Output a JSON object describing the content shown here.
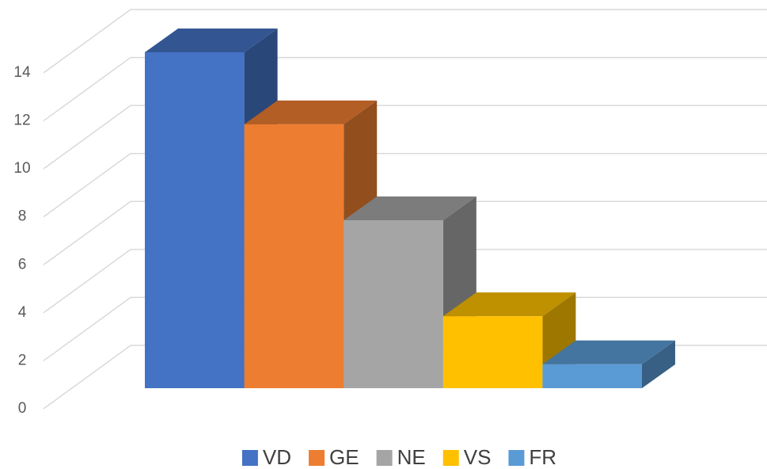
{
  "chart_data": {
    "type": "bar3d",
    "series": [
      {
        "name": "VD",
        "color": "#4472c4",
        "values": [
          14
        ]
      },
      {
        "name": "GE",
        "color": "#ed7d31",
        "values": [
          11
        ]
      },
      {
        "name": "NE",
        "color": "#a5a5a5",
        "values": [
          7
        ]
      },
      {
        "name": "VS",
        "color": "#ffc000",
        "values": [
          3
        ]
      },
      {
        "name": "FR",
        "color": "#5b9bd5",
        "values": [
          1
        ]
      }
    ],
    "ylim": [
      0,
      14
    ],
    "yticks": [
      0,
      2,
      4,
      6,
      8,
      10,
      12,
      14
    ],
    "grid": true,
    "legend": "bottom"
  }
}
